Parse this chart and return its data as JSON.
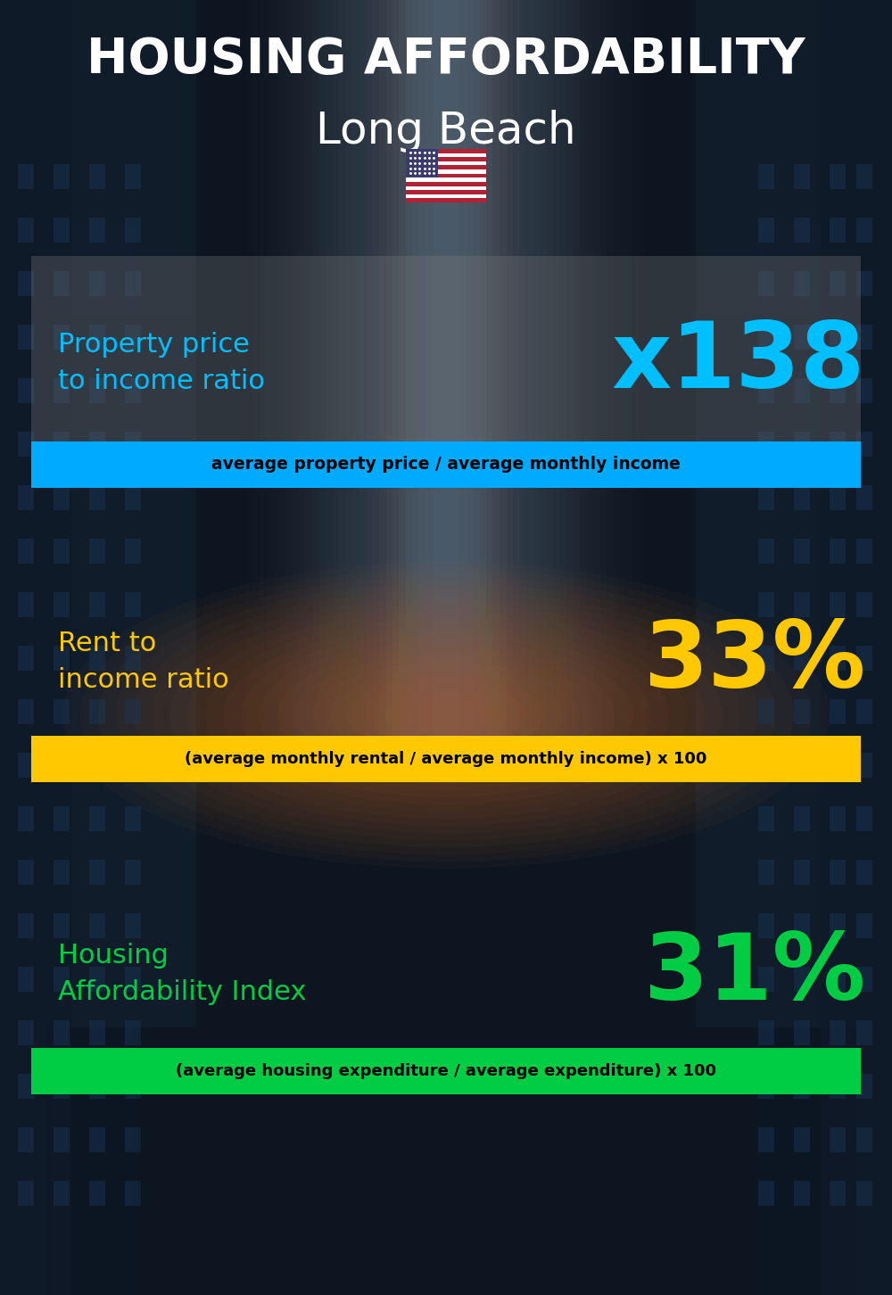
{
  "title_line1": "HOUSING AFFORDABILITY",
  "title_line2": "Long Beach",
  "bg_color": "#0d1520",
  "section1_label": "Property price\nto income ratio",
  "section1_value": "x138",
  "section1_label_color": "#00bfff",
  "section1_value_color": "#00bfff",
  "section1_formula": "average property price / average monthly income",
  "section1_formula_bg": "#00aaff",
  "section1_formula_color": "#000000",
  "section2_label": "Rent to\nincome ratio",
  "section2_value": "33%",
  "section2_label_color": "#ffc800",
  "section2_value_color": "#ffc800",
  "section2_formula": "(average monthly rental / average monthly income) x 100",
  "section2_formula_bg": "#ffc800",
  "section2_formula_color": "#000000",
  "section3_label": "Housing\nAffordability Index",
  "section3_value": "31%",
  "section3_label_color": "#00cc44",
  "section3_value_color": "#00cc44",
  "section3_formula": "(average housing expenditure / average expenditure) x 100",
  "section3_formula_bg": "#00cc44",
  "section3_formula_color": "#000000",
  "overlay_bg_color": "#808080",
  "overlay_alpha": 0.3,
  "fig_width": 10.0,
  "fig_height": 14.52,
  "dpi": 100
}
